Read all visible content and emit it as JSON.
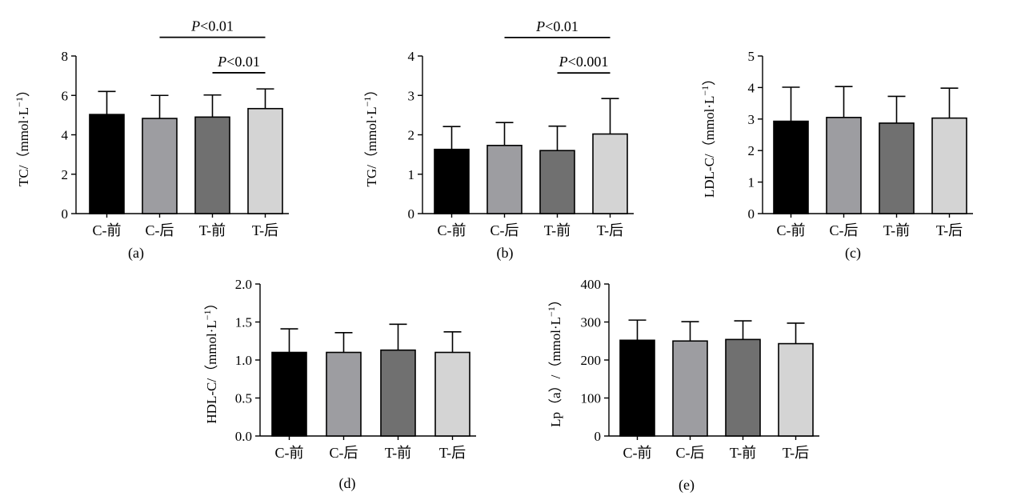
{
  "chart_data": [
    {
      "type": "bar",
      "panel": "(a)",
      "ylabel": "TC/（mmol·L",
      "ylabel_sup": "−1",
      "ylabel_close": "）",
      "categories": [
        "C-前",
        "C-后",
        "T-前",
        "T-后"
      ],
      "values": [
        5.03,
        4.83,
        4.9,
        5.33
      ],
      "errors": [
        1.17,
        1.17,
        1.12,
        1.0
      ],
      "ylim": [
        0,
        8
      ],
      "yticks": [
        0,
        2,
        4,
        6,
        8
      ],
      "annotations": [
        {
          "from": 1,
          "to": 3,
          "p": "P",
          "text": "<0.01",
          "y": 8.95
        },
        {
          "from": 2,
          "to": 3,
          "p": "P",
          "text": "<0.01",
          "y": 7.15
        }
      ]
    },
    {
      "type": "bar",
      "panel": "(b)",
      "ylabel": "TG/（mmol·L",
      "ylabel_sup": "−1",
      "ylabel_close": "）",
      "categories": [
        "C-前",
        "C-后",
        "T-前",
        "T-后"
      ],
      "values": [
        1.63,
        1.73,
        1.6,
        2.02
      ],
      "errors": [
        0.58,
        0.58,
        0.62,
        0.9
      ],
      "ylim": [
        0,
        4
      ],
      "yticks": [
        0,
        1,
        2,
        3,
        4
      ],
      "annotations": [
        {
          "from": 1,
          "to": 3,
          "p": "P",
          "text": "<0.01",
          "y": 4.47
        },
        {
          "from": 2,
          "to": 3,
          "p": "P",
          "text": "<0.001",
          "y": 3.57
        }
      ]
    },
    {
      "type": "bar",
      "panel": "(c)",
      "ylabel": "LDL-C/（mmol·L",
      "ylabel_sup": "−1",
      "ylabel_close": "）",
      "categories": [
        "C-前",
        "C-后",
        "T-前",
        "T-后"
      ],
      "values": [
        2.93,
        3.05,
        2.87,
        3.03
      ],
      "errors": [
        1.08,
        0.98,
        0.85,
        0.95
      ],
      "ylim": [
        0,
        5
      ],
      "yticks": [
        0,
        1,
        2,
        3,
        4,
        5
      ],
      "annotations": []
    },
    {
      "type": "bar",
      "panel": "(d)",
      "ylabel": "HDL-C/（mmol·L",
      "ylabel_sup": "−1",
      "ylabel_close": "）",
      "categories": [
        "C-前",
        "C-后",
        "T-前",
        "T-后"
      ],
      "values": [
        1.1,
        1.1,
        1.13,
        1.1
      ],
      "errors": [
        0.31,
        0.26,
        0.34,
        0.27
      ],
      "ylim": [
        0,
        2.0
      ],
      "yticks": [
        "0.0",
        "0.5",
        "1.0",
        "1.5",
        "2.0"
      ],
      "annotations": []
    },
    {
      "type": "bar",
      "panel": "(e)",
      "ylabel": "Lp（a）/（mmol·L",
      "ylabel_sup": "−1",
      "ylabel_close": "）",
      "categories": [
        "C-前",
        "C-后",
        "T-前",
        "T-后"
      ],
      "values": [
        252,
        250,
        254,
        243
      ],
      "errors": [
        53,
        51,
        49,
        54
      ],
      "ylim": [
        0,
        400
      ],
      "yticks": [
        0,
        100,
        200,
        300,
        400
      ],
      "annotations": []
    }
  ],
  "colors": {
    "bars": [
      "#000000",
      "#9d9da1",
      "#707070",
      "#d4d4d4"
    ],
    "axis": "#000000"
  }
}
